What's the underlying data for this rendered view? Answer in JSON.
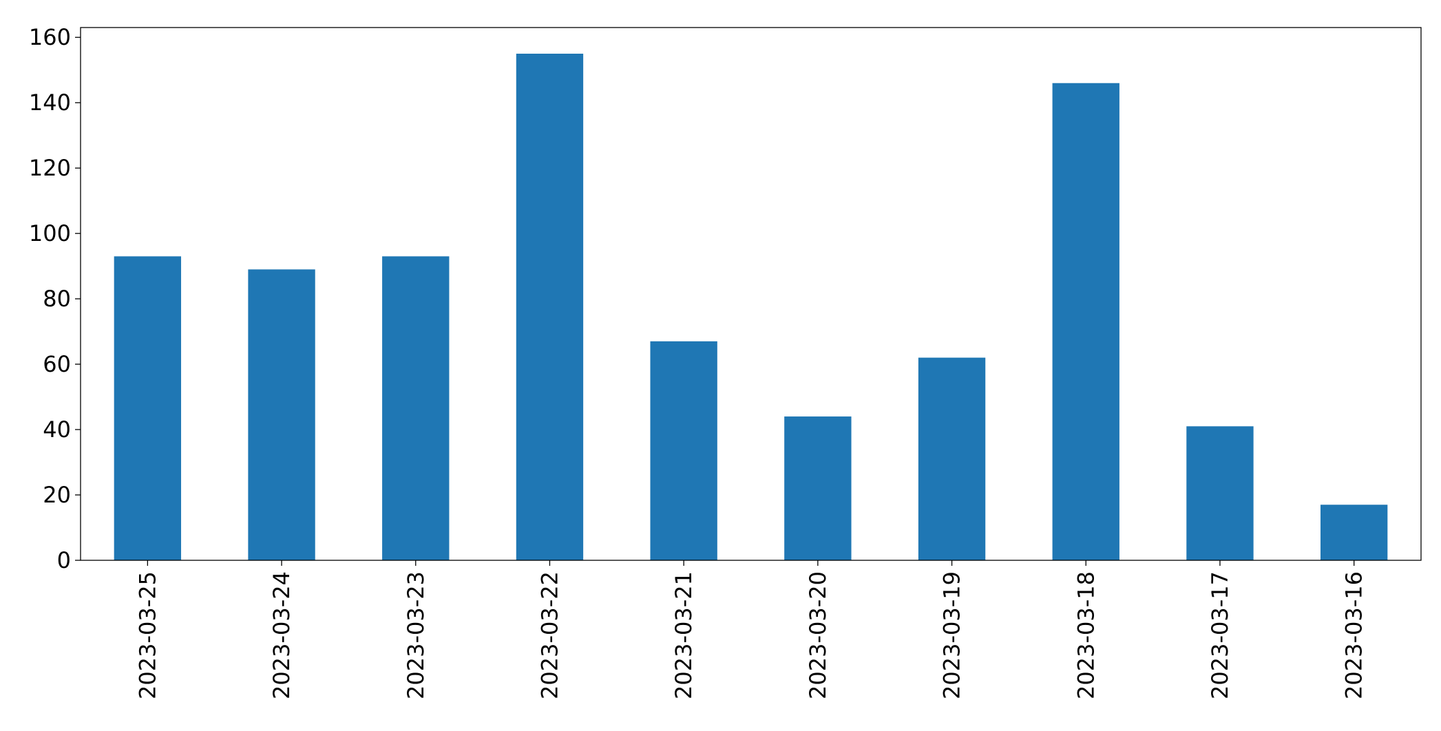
{
  "chart_data": {
    "type": "bar",
    "categories": [
      "2023-03-25",
      "2023-03-24",
      "2023-03-23",
      "2023-03-22",
      "2023-03-21",
      "2023-03-20",
      "2023-03-19",
      "2023-03-18",
      "2023-03-17",
      "2023-03-16"
    ],
    "values": [
      93,
      89,
      93,
      155,
      67,
      44,
      62,
      146,
      41,
      17
    ],
    "color": "#1f77b4",
    "ylim": [
      0,
      163
    ],
    "yticks": [
      0,
      20,
      40,
      60,
      80,
      100,
      120,
      140,
      160
    ],
    "grid": false
  }
}
